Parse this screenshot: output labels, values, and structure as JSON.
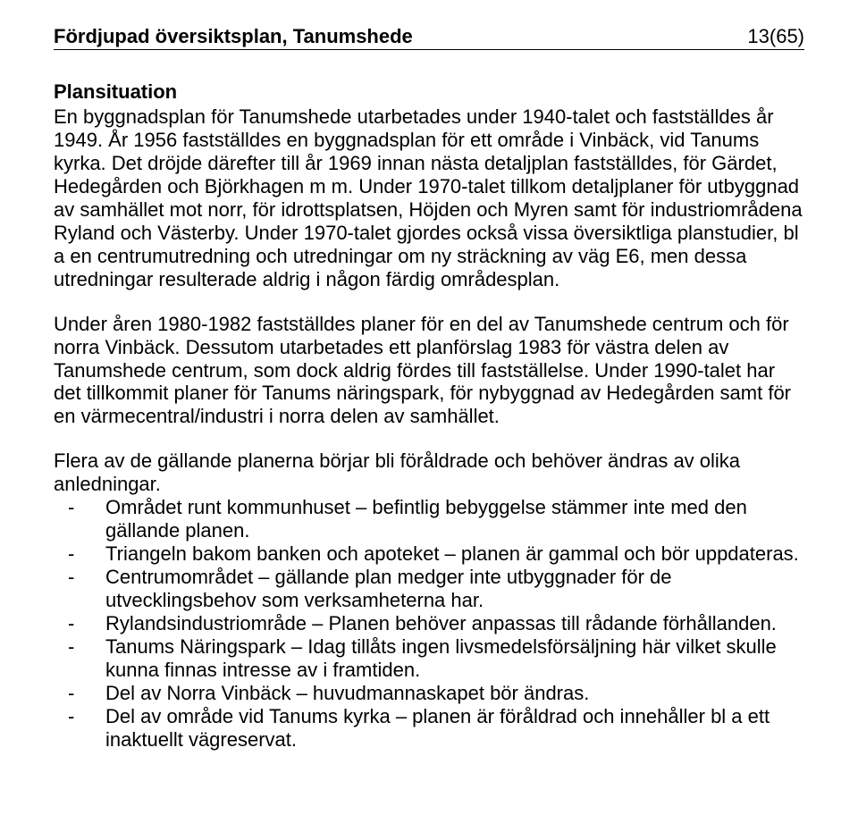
{
  "header": {
    "title": "Fördjupad översiktsplan, Tanumshede",
    "page_num": "13(65)"
  },
  "section_heading": "Plansituation",
  "paragraphs": [
    "En byggnadsplan för Tanumshede utarbetades under 1940-talet och fastställdes år 1949. År 1956 fastställdes en byggnadsplan för ett område i Vinbäck, vid Tanums kyrka. Det dröjde därefter till år 1969 innan nästa detaljplan fastställdes, för Gärdet, Hedegården och Björkhagen m m. Under 1970-talet tillkom detaljplaner för utbyggnad av samhället mot norr, för idrottsplatsen, Höjden och Myren samt för industriområdena Ryland och Västerby. Under 1970-talet gjordes också vissa översiktliga planstudier, bl a en centrumutredning och utredningar om ny sträckning av väg E6, men dessa utredningar resulterade aldrig i någon färdig områdesplan.",
    "Under åren 1980-1982 fastställdes planer för en del av Tanumshede centrum och för norra Vinbäck. Dessutom utarbetades ett planförslag 1983 för västra delen av Tanumshede centrum, som dock aldrig fördes till fastställelse. Under 1990-talet har det tillkommit planer för Tanums näringspark, för nybyggnad av Hedegården samt för en värmecentral/industri i norra delen av samhället.",
    "Flera av de gällande planerna börjar bli föråldrade och behöver ändras av olika anledningar."
  ],
  "list_items": [
    "Området runt kommunhuset – befintlig bebyggelse stämmer inte med den gällande planen.",
    "Triangeln bakom banken och apoteket – planen är gammal och bör uppdateras.",
    "Centrumområdet – gällande plan medger inte utbyggnader för de utvecklingsbehov som verksamheterna har.",
    "Rylandsindustriområde – Planen behöver anpassas till rådande förhållanden.",
    "Tanums Näringspark – Idag tillåts ingen livsmedelsförsäljning här vilket skulle kunna finnas intresse av i framtiden.",
    "Del av Norra Vinbäck – huvudmannaskapet bör ändras.",
    "Del av område vid Tanums kyrka – planen är föråldrad och innehåller bl a ett inaktuellt vägreservat."
  ]
}
